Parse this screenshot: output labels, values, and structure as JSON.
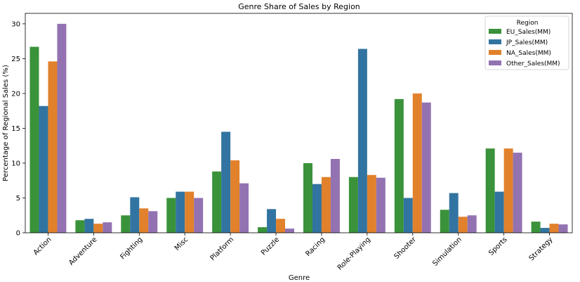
{
  "chart_data": {
    "type": "bar",
    "title": "Genre Share of Sales by Region",
    "xlabel": "Genre",
    "ylabel": "Percentage of Regional Sales (%)",
    "ylim": [
      0,
      31.5
    ],
    "yticks": [
      0,
      5,
      10,
      15,
      20,
      25,
      30
    ],
    "grid": false,
    "legend": {
      "title": "Region",
      "placement": "top-right"
    },
    "categories": [
      "Action",
      "Adventure",
      "Fighting",
      "Misc",
      "Platform",
      "Puzzle",
      "Racing",
      "Role-Playing",
      "Shooter",
      "Simulation",
      "Sports",
      "Strategy"
    ],
    "series": [
      {
        "name": "EU_Sales(MM)",
        "color": "#3a923a",
        "values": [
          26.7,
          1.8,
          2.5,
          5.0,
          8.8,
          0.8,
          10.0,
          8.0,
          19.2,
          3.3,
          12.1,
          1.6
        ]
      },
      {
        "name": "JP_Sales(MM)",
        "color": "#3274a1",
        "values": [
          18.2,
          2.0,
          5.1,
          5.9,
          14.5,
          3.4,
          7.0,
          26.4,
          5.0,
          5.7,
          5.9,
          0.7
        ]
      },
      {
        "name": "NA_Sales(MM)",
        "color": "#e1812c",
        "values": [
          24.6,
          1.3,
          3.5,
          5.9,
          10.4,
          2.0,
          8.0,
          8.3,
          20.0,
          2.3,
          12.1,
          1.3
        ]
      },
      {
        "name": "Other_Sales(MM)",
        "color": "#9372b2",
        "values": [
          30.0,
          1.5,
          3.1,
          5.0,
          7.1,
          0.6,
          10.6,
          7.9,
          18.7,
          2.5,
          11.5,
          1.2
        ]
      }
    ]
  }
}
